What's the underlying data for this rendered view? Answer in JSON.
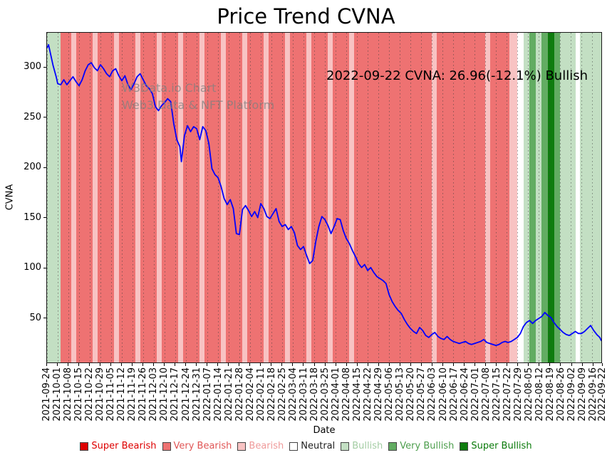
{
  "title": "Price Trend CVNA",
  "annotation": "2022-09-22 CVNA: 26.96(-12.1%) Bullish",
  "watermark": {
    "line1": "W3Data.io Chart",
    "line2": "Web3 Data & NFT Platform"
  },
  "axes": {
    "x_label": "Date",
    "y_label": "CVNA"
  },
  "legend": [
    {
      "label": "Super Bearish",
      "color": "#dd0000",
      "text_color": "#dd0000"
    },
    {
      "label": "Very Bearish",
      "color": "#ee7272",
      "text_color": "#e05555"
    },
    {
      "label": "Bearish",
      "color": "#f8c3c3",
      "text_color": "#ef9a9a"
    },
    {
      "label": "Neutral",
      "color": "#ffffff",
      "text_color": "#222222"
    },
    {
      "label": "Bullish",
      "color": "#c3dfc3",
      "text_color": "#a4cda4"
    },
    {
      "label": "Very Bullish",
      "color": "#62ac62",
      "text_color": "#4d9e4d"
    },
    {
      "label": "Super Bullish",
      "color": "#0e7c0e",
      "text_color": "#0a7a0a"
    }
  ],
  "chart_data": {
    "type": "line",
    "title": "Price Trend CVNA",
    "xlabel": "Date",
    "ylabel": "CVNA",
    "series_name": "CVNA price",
    "line_color": "#0000ff",
    "last_point": {
      "date": "2022-09-22",
      "price": 26.96,
      "change_pct": -12.1,
      "sentiment": "Bullish"
    },
    "y_ticks": [
      50,
      100,
      150,
      200,
      250,
      300
    ],
    "ylim": [
      5,
      335
    ],
    "x_total_days": 363,
    "x_tick_days": [
      0,
      7,
      14,
      21,
      28,
      35,
      42,
      49,
      56,
      63,
      70,
      77,
      84,
      91,
      98,
      105,
      112,
      119,
      126,
      133,
      140,
      147,
      154,
      161,
      168,
      175,
      182,
      189,
      196,
      203,
      210,
      217,
      224,
      231,
      238,
      245,
      252,
      259,
      266,
      273,
      280,
      287,
      294,
      301,
      308,
      315,
      322,
      329,
      336,
      343,
      350,
      357,
      363
    ],
    "x_tick_labels": [
      "2021-09-24",
      "2021-10-01",
      "2021-10-08",
      "2021-10-15",
      "2021-10-22",
      "2021-10-29",
      "2021-11-05",
      "2021-11-12",
      "2021-11-19",
      "2021-11-26",
      "2021-12-03",
      "2021-12-10",
      "2021-12-17",
      "2021-12-24",
      "2021-12-31",
      "2022-01-07",
      "2022-01-14",
      "2022-01-21",
      "2022-01-28",
      "2022-02-04",
      "2022-02-11",
      "2022-02-18",
      "2022-02-25",
      "2022-03-04",
      "2022-03-11",
      "2022-03-18",
      "2022-03-25",
      "2022-04-01",
      "2022-04-08",
      "2022-04-15",
      "2022-04-22",
      "2022-04-29",
      "2022-05-06",
      "2022-05-13",
      "2022-05-20",
      "2022-05-27",
      "2022-06-03",
      "2022-06-10",
      "2022-06-17",
      "2022-06-24",
      "2022-07-01",
      "2022-07-08",
      "2022-07-15",
      "2022-07-22",
      "2022-07-29",
      "2022-08-05",
      "2022-08-12",
      "2022-08-19",
      "2022-08-26",
      "2022-09-02",
      "2022-09-09",
      "2022-09-16",
      "2022-09-22"
    ],
    "points_format": "[days_since_2021-09-24, price_usd]",
    "points": [
      [
        0,
        320
      ],
      [
        1,
        323
      ],
      [
        2,
        316
      ],
      [
        4,
        302
      ],
      [
        6,
        291
      ],
      [
        7,
        284
      ],
      [
        9,
        283
      ],
      [
        11,
        288
      ],
      [
        13,
        283
      ],
      [
        15,
        287
      ],
      [
        17,
        291
      ],
      [
        19,
        286
      ],
      [
        21,
        282
      ],
      [
        23,
        288
      ],
      [
        25,
        297
      ],
      [
        27,
        303
      ],
      [
        29,
        305
      ],
      [
        31,
        300
      ],
      [
        33,
        297
      ],
      [
        35,
        303
      ],
      [
        37,
        299
      ],
      [
        39,
        294
      ],
      [
        41,
        291
      ],
      [
        43,
        297
      ],
      [
        45,
        299
      ],
      [
        47,
        292
      ],
      [
        49,
        287
      ],
      [
        51,
        292
      ],
      [
        53,
        283
      ],
      [
        55,
        278
      ],
      [
        57,
        284
      ],
      [
        59,
        291
      ],
      [
        61,
        294
      ],
      [
        63,
        288
      ],
      [
        65,
        282
      ],
      [
        67,
        279
      ],
      [
        69,
        274
      ],
      [
        71,
        261
      ],
      [
        73,
        257
      ],
      [
        75,
        262
      ],
      [
        77,
        265
      ],
      [
        79,
        269
      ],
      [
        81,
        266
      ],
      [
        83,
        244
      ],
      [
        85,
        228
      ],
      [
        87,
        221
      ],
      [
        88,
        206
      ],
      [
        90,
        232
      ],
      [
        92,
        242
      ],
      [
        94,
        236
      ],
      [
        96,
        241
      ],
      [
        98,
        239
      ],
      [
        100,
        228
      ],
      [
        102,
        241
      ],
      [
        104,
        237
      ],
      [
        106,
        224
      ],
      [
        108,
        199
      ],
      [
        110,
        193
      ],
      [
        112,
        190
      ],
      [
        114,
        181
      ],
      [
        116,
        169
      ],
      [
        118,
        163
      ],
      [
        120,
        168
      ],
      [
        122,
        159
      ],
      [
        124,
        134
      ],
      [
        126,
        133
      ],
      [
        128,
        158
      ],
      [
        130,
        162
      ],
      [
        132,
        157
      ],
      [
        134,
        151
      ],
      [
        136,
        156
      ],
      [
        138,
        150
      ],
      [
        140,
        164
      ],
      [
        142,
        159
      ],
      [
        144,
        151
      ],
      [
        146,
        149
      ],
      [
        148,
        154
      ],
      [
        150,
        159
      ],
      [
        152,
        146
      ],
      [
        154,
        141
      ],
      [
        156,
        143
      ],
      [
        158,
        138
      ],
      [
        160,
        141
      ],
      [
        162,
        135
      ],
      [
        164,
        122
      ],
      [
        166,
        118
      ],
      [
        168,
        121
      ],
      [
        170,
        112
      ],
      [
        172,
        104
      ],
      [
        174,
        107
      ],
      [
        176,
        126
      ],
      [
        178,
        141
      ],
      [
        180,
        151
      ],
      [
        182,
        148
      ],
      [
        184,
        142
      ],
      [
        186,
        134
      ],
      [
        188,
        141
      ],
      [
        190,
        149
      ],
      [
        192,
        148
      ],
      [
        194,
        137
      ],
      [
        196,
        129
      ],
      [
        198,
        124
      ],
      [
        200,
        117
      ],
      [
        202,
        111
      ],
      [
        204,
        104
      ],
      [
        206,
        100
      ],
      [
        208,
        103
      ],
      [
        210,
        97
      ],
      [
        212,
        100
      ],
      [
        214,
        95
      ],
      [
        216,
        91
      ],
      [
        218,
        89
      ],
      [
        220,
        87
      ],
      [
        222,
        84
      ],
      [
        224,
        73
      ],
      [
        226,
        66
      ],
      [
        228,
        61
      ],
      [
        230,
        57
      ],
      [
        232,
        54
      ],
      [
        234,
        48
      ],
      [
        236,
        43
      ],
      [
        238,
        39
      ],
      [
        240,
        36
      ],
      [
        242,
        34
      ],
      [
        244,
        40
      ],
      [
        246,
        37
      ],
      [
        248,
        32
      ],
      [
        250,
        30
      ],
      [
        252,
        33
      ],
      [
        254,
        35
      ],
      [
        256,
        31
      ],
      [
        258,
        29
      ],
      [
        260,
        28
      ],
      [
        262,
        31
      ],
      [
        264,
        28
      ],
      [
        266,
        26
      ],
      [
        268,
        25
      ],
      [
        270,
        24
      ],
      [
        272,
        25
      ],
      [
        274,
        26
      ],
      [
        276,
        24
      ],
      [
        278,
        23
      ],
      [
        280,
        24
      ],
      [
        282,
        25
      ],
      [
        284,
        26
      ],
      [
        286,
        28
      ],
      [
        288,
        25
      ],
      [
        290,
        24
      ],
      [
        292,
        23
      ],
      [
        294,
        22
      ],
      [
        296,
        23
      ],
      [
        298,
        25
      ],
      [
        300,
        26
      ],
      [
        302,
        25
      ],
      [
        304,
        26
      ],
      [
        306,
        28
      ],
      [
        308,
        30
      ],
      [
        310,
        34
      ],
      [
        312,
        41
      ],
      [
        314,
        45
      ],
      [
        316,
        47
      ],
      [
        318,
        44
      ],
      [
        320,
        47
      ],
      [
        322,
        49
      ],
      [
        324,
        51
      ],
      [
        326,
        55
      ],
      [
        328,
        52
      ],
      [
        330,
        50
      ],
      [
        332,
        45
      ],
      [
        334,
        41
      ],
      [
        336,
        38
      ],
      [
        338,
        35
      ],
      [
        340,
        33
      ],
      [
        342,
        32
      ],
      [
        344,
        34
      ],
      [
        346,
        36
      ],
      [
        348,
        34
      ],
      [
        350,
        34
      ],
      [
        352,
        36
      ],
      [
        354,
        39
      ],
      [
        356,
        42
      ],
      [
        358,
        37
      ],
      [
        360,
        33
      ],
      [
        362,
        30
      ],
      [
        363,
        26.96
      ]
    ],
    "band_colors": {
      "super_bearish": "#e60000",
      "very_bearish": "#ee7272",
      "bearish": "#f8c3c3",
      "neutral": "#ffffff",
      "bullish": "#c3dfc3",
      "very_bullish": "#62ac62",
      "super_bullish": "#0e7c0e"
    },
    "bands": [
      {
        "d0": 0,
        "d1": 9,
        "s": "bullish"
      },
      {
        "d0": 9,
        "d1": 16,
        "s": "very_bearish"
      },
      {
        "d0": 16,
        "d1": 19,
        "s": "bearish"
      },
      {
        "d0": 19,
        "d1": 30,
        "s": "very_bearish"
      },
      {
        "d0": 30,
        "d1": 33,
        "s": "bearish"
      },
      {
        "d0": 33,
        "d1": 44,
        "s": "very_bearish"
      },
      {
        "d0": 44,
        "d1": 47,
        "s": "bearish"
      },
      {
        "d0": 47,
        "d1": 58,
        "s": "very_bearish"
      },
      {
        "d0": 58,
        "d1": 61,
        "s": "bearish"
      },
      {
        "d0": 61,
        "d1": 72,
        "s": "very_bearish"
      },
      {
        "d0": 72,
        "d1": 75,
        "s": "bearish"
      },
      {
        "d0": 75,
        "d1": 86,
        "s": "very_bearish"
      },
      {
        "d0": 86,
        "d1": 89,
        "s": "bearish"
      },
      {
        "d0": 89,
        "d1": 100,
        "s": "very_bearish"
      },
      {
        "d0": 100,
        "d1": 103,
        "s": "bearish"
      },
      {
        "d0": 103,
        "d1": 114,
        "s": "very_bearish"
      },
      {
        "d0": 114,
        "d1": 117,
        "s": "bearish"
      },
      {
        "d0": 117,
        "d1": 128,
        "s": "very_bearish"
      },
      {
        "d0": 128,
        "d1": 131,
        "s": "bearish"
      },
      {
        "d0": 131,
        "d1": 142,
        "s": "very_bearish"
      },
      {
        "d0": 142,
        "d1": 145,
        "s": "bearish"
      },
      {
        "d0": 145,
        "d1": 156,
        "s": "very_bearish"
      },
      {
        "d0": 156,
        "d1": 159,
        "s": "bearish"
      },
      {
        "d0": 159,
        "d1": 170,
        "s": "very_bearish"
      },
      {
        "d0": 170,
        "d1": 173,
        "s": "bearish"
      },
      {
        "d0": 173,
        "d1": 184,
        "s": "very_bearish"
      },
      {
        "d0": 184,
        "d1": 187,
        "s": "bearish"
      },
      {
        "d0": 187,
        "d1": 198,
        "s": "very_bearish"
      },
      {
        "d0": 198,
        "d1": 201,
        "s": "bearish"
      },
      {
        "d0": 201,
        "d1": 252,
        "s": "very_bearish"
      },
      {
        "d0": 252,
        "d1": 255,
        "s": "bearish"
      },
      {
        "d0": 255,
        "d1": 287,
        "s": "very_bearish"
      },
      {
        "d0": 287,
        "d1": 290,
        "s": "bearish"
      },
      {
        "d0": 290,
        "d1": 303,
        "s": "very_bearish"
      },
      {
        "d0": 303,
        "d1": 308,
        "s": "bearish"
      },
      {
        "d0": 308,
        "d1": 312,
        "s": "neutral"
      },
      {
        "d0": 312,
        "d1": 316,
        "s": "bullish"
      },
      {
        "d0": 316,
        "d1": 320,
        "s": "very_bullish"
      },
      {
        "d0": 320,
        "d1": 324,
        "s": "bullish"
      },
      {
        "d0": 324,
        "d1": 328,
        "s": "very_bullish"
      },
      {
        "d0": 328,
        "d1": 332,
        "s": "super_bullish"
      },
      {
        "d0": 332,
        "d1": 336,
        "s": "very_bullish"
      },
      {
        "d0": 336,
        "d1": 346,
        "s": "bullish"
      },
      {
        "d0": 346,
        "d1": 349,
        "s": "neutral"
      },
      {
        "d0": 349,
        "d1": 363,
        "s": "bullish"
      }
    ]
  }
}
